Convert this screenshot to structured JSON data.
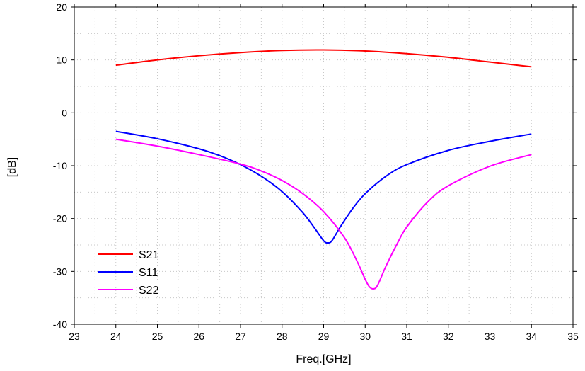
{
  "chart_data": {
    "type": "line",
    "xlabel": "Freq.[GHz]",
    "ylabel": "[dB]",
    "xlim": [
      23,
      35
    ],
    "ylim": [
      -40,
      20
    ],
    "xticks": [
      23,
      24,
      25,
      26,
      27,
      28,
      29,
      30,
      31,
      32,
      33,
      34,
      35
    ],
    "yticks": [
      -40,
      -30,
      -20,
      -10,
      0,
      10,
      20
    ],
    "grid": "minor dotted",
    "legend": "bottom-left",
    "series": [
      {
        "name": "S21",
        "color": "#ff0000",
        "x": [
          24,
          25,
          26,
          27,
          28,
          29,
          30,
          31,
          32,
          33,
          34
        ],
        "y": [
          9.0,
          10.0,
          10.8,
          11.4,
          11.8,
          11.9,
          11.7,
          11.2,
          10.5,
          9.6,
          8.7
        ]
      },
      {
        "name": "S11",
        "color": "#0000ff",
        "x": [
          24,
          25,
          26,
          26.5,
          27,
          27.5,
          28,
          28.5,
          28.8,
          29.0,
          29.1,
          29.2,
          29.4,
          29.7,
          30,
          30.5,
          31,
          32,
          33,
          34
        ],
        "y": [
          -3.5,
          -4.9,
          -6.8,
          -8.1,
          -9.8,
          -12.0,
          -14.9,
          -18.9,
          -22.0,
          -24.2,
          -24.6,
          -24.2,
          -21.6,
          -18.1,
          -15.3,
          -12.0,
          -9.8,
          -7.1,
          -5.4,
          -4.0
        ]
      },
      {
        "name": "S22",
        "color": "#ff00ff",
        "x": [
          24,
          25,
          26,
          27,
          27.5,
          28,
          28.5,
          29,
          29.5,
          29.8,
          30,
          30.1,
          30.2,
          30.3,
          30.5,
          30.8,
          31,
          31.5,
          32,
          33,
          34
        ],
        "y": [
          -5.0,
          -6.3,
          -7.9,
          -9.7,
          -11.0,
          -12.8,
          -15.3,
          -18.7,
          -23.6,
          -28.0,
          -31.5,
          -32.9,
          -33.3,
          -32.6,
          -29.0,
          -24.3,
          -21.6,
          -16.9,
          -13.8,
          -10.1,
          -7.9
        ]
      }
    ]
  }
}
